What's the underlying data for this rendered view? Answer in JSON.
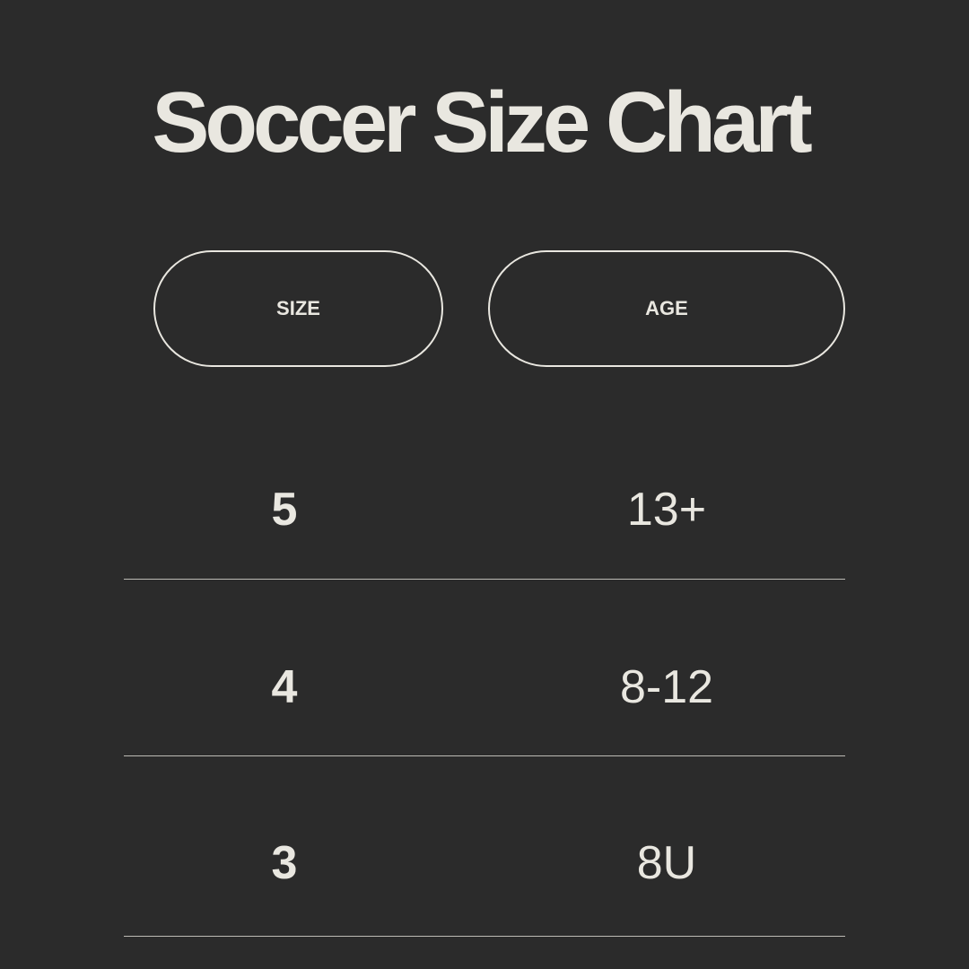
{
  "title": "Soccer Size Chart",
  "headers": {
    "size": "SIZE",
    "age": "AGE"
  },
  "rows": [
    {
      "size": "5",
      "age": "13+"
    },
    {
      "size": "4",
      "age": "8-12"
    },
    {
      "size": "3",
      "age": "8U"
    }
  ],
  "colors": {
    "background": "#2b2b2b",
    "text": "#e9e7e0"
  }
}
